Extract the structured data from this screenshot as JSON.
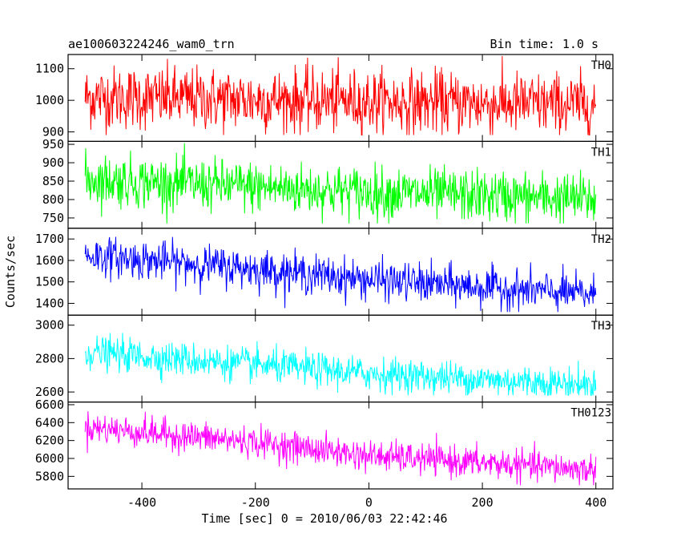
{
  "chart_data": {
    "type": "line",
    "title_left": "ae100603224246_wam0_trn",
    "title_right": "Bin time: 1.0 s",
    "xlabel": "Time [sec] 0 = 2010/06/03 22:42:46",
    "ylabel": "Counts/sec",
    "xlim": [
      -530,
      430
    ],
    "x_range": [
      -500,
      400
    ],
    "x_ticks": [
      -400,
      -200,
      0,
      200,
      400
    ],
    "grid": false,
    "panels": [
      {
        "label": "TH0",
        "color": "#ff0000",
        "ylim": [
          870,
          1145
        ],
        "y_ticks": [
          900,
          1000,
          1100
        ],
        "trend": [
          {
            "x": -500,
            "y": 1010
          },
          {
            "x": 400,
            "y": 985
          }
        ],
        "noise": 50,
        "spike_max": 1140,
        "spike_min": 890
      },
      {
        "label": "TH1",
        "color": "#00ff00",
        "ylim": [
          722,
          958
        ],
        "y_ticks": [
          750,
          800,
          850,
          900,
          950
        ],
        "trend": [
          {
            "x": -500,
            "y": 855
          },
          {
            "x": 0,
            "y": 820
          },
          {
            "x": 400,
            "y": 800
          }
        ],
        "noise": 35,
        "spike_max": 955,
        "spike_min": 735
      },
      {
        "label": "TH2",
        "color": "#0000ff",
        "ylim": [
          1345,
          1750
        ],
        "y_ticks": [
          1400,
          1500,
          1600,
          1700
        ],
        "trend": [
          {
            "x": -500,
            "y": 1625
          },
          {
            "x": -200,
            "y": 1560
          },
          {
            "x": 0,
            "y": 1510
          },
          {
            "x": 400,
            "y": 1440
          }
        ],
        "noise": 45,
        "spike_max": 1745,
        "spike_min": 1360
      },
      {
        "label": "TH3",
        "color": "#00ffff",
        "ylim": [
          2540,
          3060
        ],
        "y_ticks": [
          2600,
          2800,
          3000
        ],
        "trend": [
          {
            "x": -500,
            "y": 2840
          },
          {
            "x": 0,
            "y": 2710
          },
          {
            "x": 400,
            "y": 2640
          }
        ],
        "noise": 50,
        "spike_max": 3050,
        "spike_min": 2580
      },
      {
        "label": "TH0123",
        "color": "#ff00ff",
        "ylim": [
          5660,
          6630
        ],
        "y_ticks": [
          5800,
          6000,
          6200,
          6400,
          6600
        ],
        "trend": [
          {
            "x": -500,
            "y": 6350
          },
          {
            "x": -200,
            "y": 6180
          },
          {
            "x": 0,
            "y": 6030
          },
          {
            "x": 400,
            "y": 5870
          }
        ],
        "noise": 85,
        "spike_max": 6620,
        "spike_min": 5700
      }
    ]
  }
}
